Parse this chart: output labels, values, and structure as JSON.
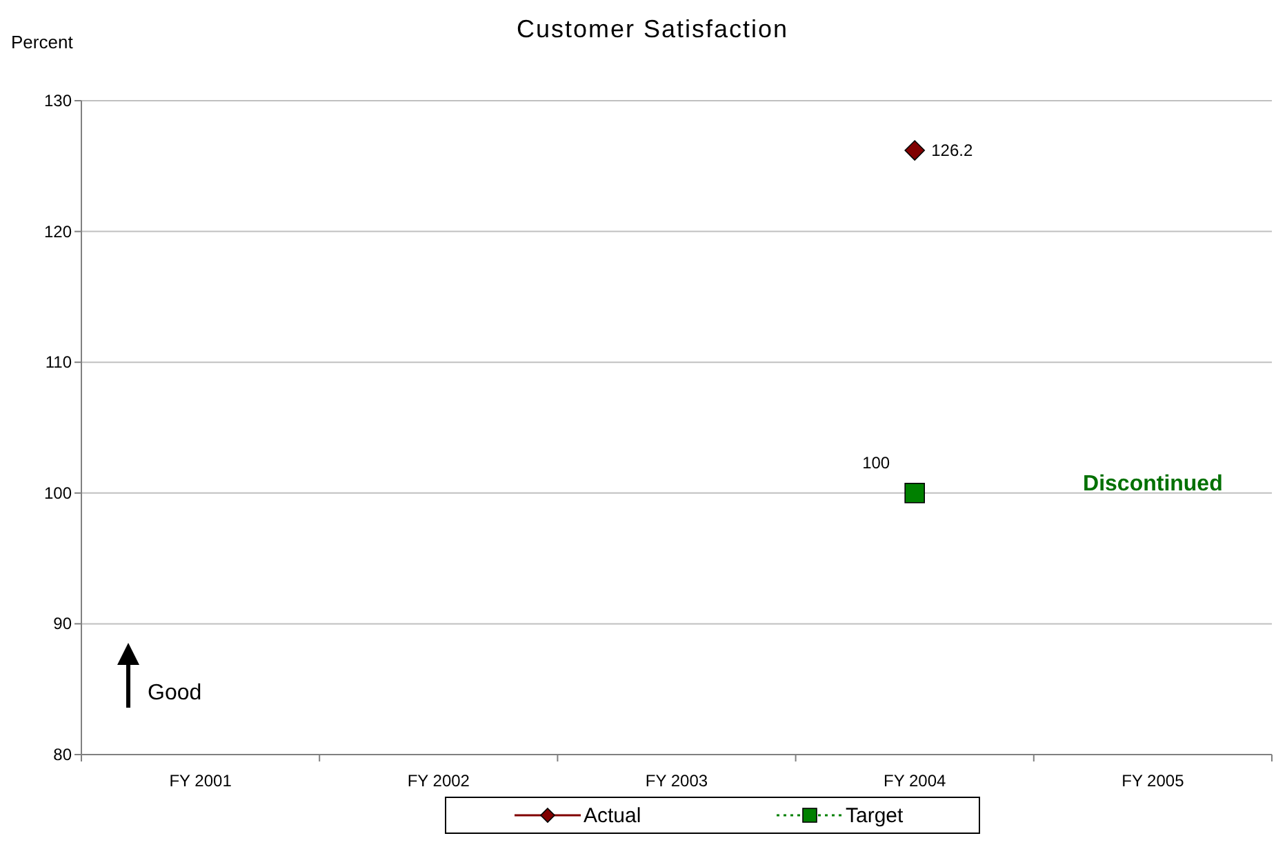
{
  "chart_data": {
    "type": "line",
    "title": "Customer Satisfaction",
    "ylabel": "Percent",
    "categories": [
      "FY 2001",
      "FY 2002",
      "FY 2003",
      "FY 2004",
      "FY 2005"
    ],
    "series": [
      {
        "name": "Actual",
        "color": "#800000",
        "marker": "diamond",
        "line_style": "solid",
        "values": [
          null,
          null,
          null,
          126.2,
          null
        ],
        "value_labels": [
          null,
          null,
          null,
          "126.2",
          null
        ]
      },
      {
        "name": "Target",
        "color": "#008000",
        "marker": "square",
        "line_style": "dotted",
        "values": [
          null,
          null,
          null,
          100,
          null
        ],
        "value_labels": [
          null,
          null,
          null,
          "100",
          null
        ]
      }
    ],
    "ylim": [
      80,
      130
    ],
    "yticks": [
      80,
      90,
      100,
      110,
      120,
      130
    ],
    "grid": "y",
    "legend": "bottom",
    "annotations": [
      "Discontinued",
      "Good"
    ]
  }
}
